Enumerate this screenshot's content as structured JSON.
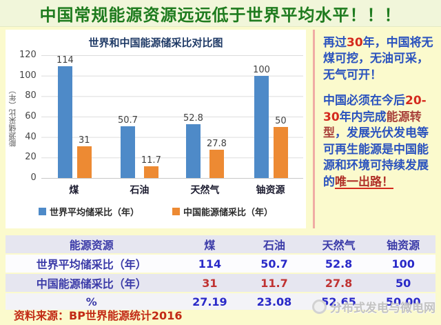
{
  "slide": {
    "title": "中国常规能源资源远远低于世界平均水平！！！"
  },
  "chart_data": {
    "type": "bar",
    "title": "世界和中国能源储采比对比图",
    "categories": [
      "煤",
      "石油",
      "天然气",
      "铀资源"
    ],
    "series": [
      {
        "name": "世界平均储采比（年）",
        "color": "#4E8AC8",
        "values": [
          114,
          50.7,
          52.8,
          100
        ]
      },
      {
        "name": "中国能源储采比（年）",
        "color": "#ED8A33",
        "values": [
          31,
          11.7,
          27.8,
          50
        ]
      }
    ],
    "ylabel": "能源储采比（年）",
    "ylim": [
      0,
      120
    ],
    "yticks": [
      0,
      20,
      40,
      60,
      80,
      100,
      120
    ],
    "grid": "horizontal",
    "legend_position": "bottom"
  },
  "right_panel": {
    "p1": [
      {
        "text": "再过"
      },
      {
        "text": "30"
      },
      {
        "text": "年，中国将无煤可挖，无油可采，无气可开！"
      }
    ],
    "p2": [
      {
        "text": "中国必须在今后"
      },
      {
        "text": "20-30"
      },
      {
        "text": "年内完成"
      },
      {
        "text": "能源转型"
      },
      {
        "text": "，发展光伏发电等可再生能源是中国能源和环境可持续发展的"
      },
      {
        "text": "唯一出路！"
      }
    ]
  },
  "table": {
    "headers": [
      "能源资源",
      "煤",
      "石油",
      "天然气",
      "铀资源"
    ],
    "rows": [
      {
        "label": "世界平均储采比（年）",
        "values": [
          "114",
          "50.7",
          "52.8",
          "100"
        ]
      },
      {
        "label": "中国能源储采比（年）",
        "values": [
          "31",
          "11.7",
          "27.8",
          "50"
        ]
      },
      {
        "label": "%",
        "values": [
          "27.19",
          "23.08",
          "52.65",
          "50.00"
        ]
      }
    ]
  },
  "footer": {
    "source": "资料来源：BP世界能源统计2016",
    "watermark": "分布式发电与微电网"
  }
}
